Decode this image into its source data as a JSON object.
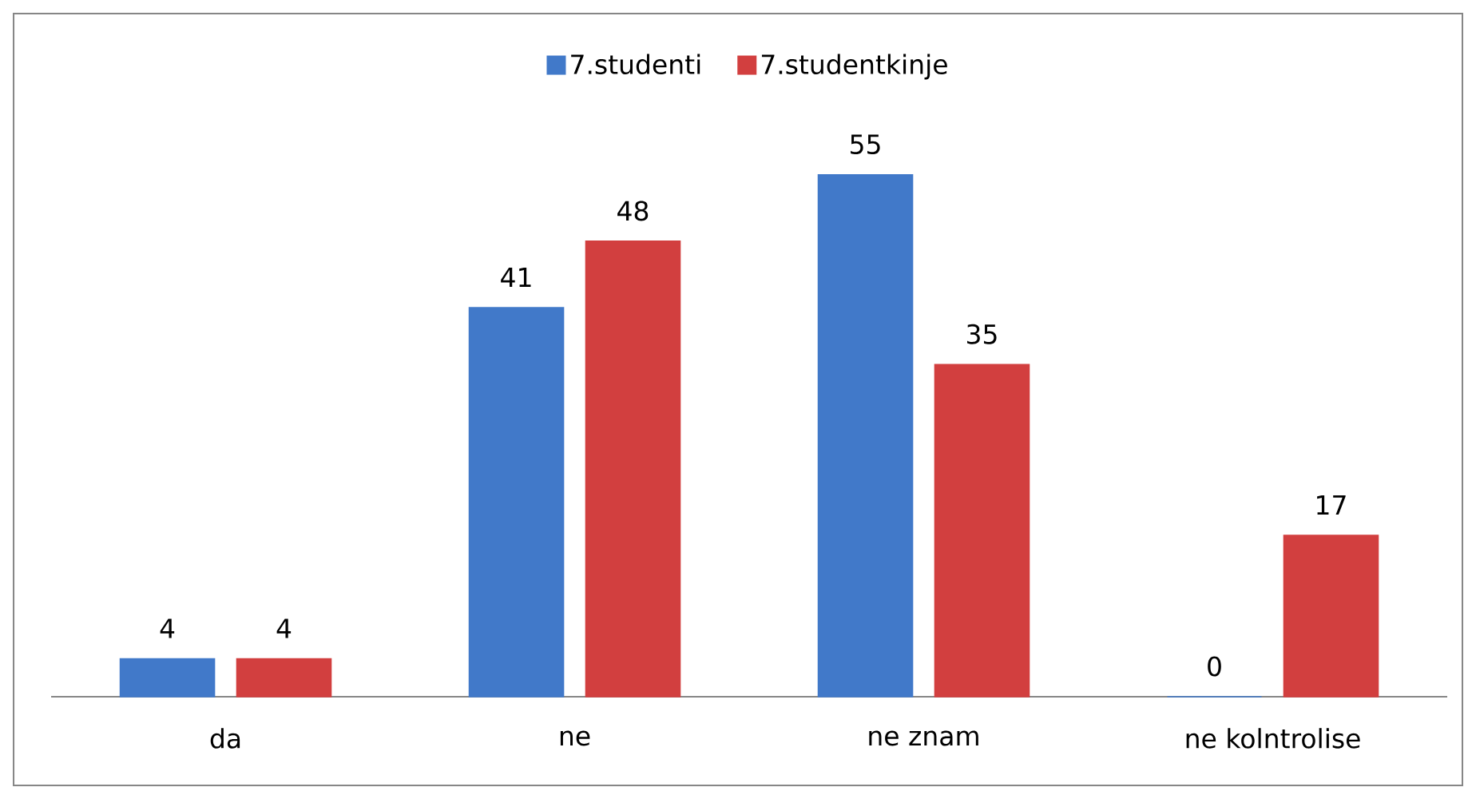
{
  "chart_data": {
    "type": "bar",
    "categories": [
      "da",
      "ne",
      "ne znam",
      "ne kolntrolise"
    ],
    "series": [
      {
        "name": "7.studenti",
        "color": "#4179c9",
        "values": [
          4,
          41,
          55,
          0
        ]
      },
      {
        "name": "7.studentkinje",
        "color": "#d23f3f",
        "values": [
          4,
          48,
          35,
          17
        ]
      }
    ],
    "data_labels": true,
    "legend": "top"
  }
}
